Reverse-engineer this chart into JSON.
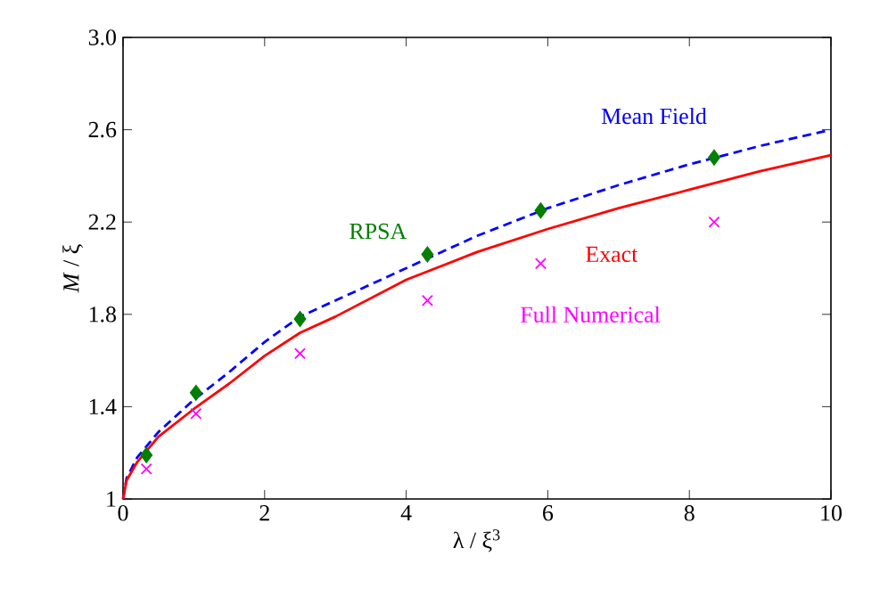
{
  "chart_data": {
    "type": "line",
    "xlabel": "λ / ξ$^{3}$",
    "ylabel": "*M* / ξ",
    "xlim": [
      0,
      10
    ],
    "ylim": [
      1,
      3
    ],
    "xticks": [
      0,
      2,
      4,
      6,
      8,
      10
    ],
    "yticks": [
      1,
      1.4,
      1.8,
      2.2,
      2.6,
      {
        "value": 3,
        "label": "3.0"
      }
    ],
    "grid": false,
    "legend": false,
    "series": [
      {
        "name": "Mean Field",
        "color": "#0000ff",
        "line_style": "dashed",
        "marker": "none",
        "x": [
          0,
          0.05,
          0.2,
          0.5,
          1,
          1.5,
          2,
          2.5,
          3,
          4,
          5,
          6,
          7,
          8,
          9,
          10
        ],
        "values": [
          1,
          1.09,
          1.18,
          1.29,
          1.43,
          1.55,
          1.68,
          1.79,
          1.86,
          2.0,
          2.14,
          2.26,
          2.36,
          2.45,
          2.53,
          2.6
        ]
      },
      {
        "name": "Exact",
        "color": "#ff0000",
        "line_style": "solid",
        "marker": "none",
        "x": [
          0,
          0.05,
          0.2,
          0.5,
          1,
          1.5,
          2,
          2.5,
          3,
          4,
          5,
          6,
          7,
          8,
          9,
          10
        ],
        "values": [
          1,
          1.08,
          1.16,
          1.27,
          1.39,
          1.5,
          1.62,
          1.72,
          1.79,
          1.95,
          2.07,
          2.17,
          2.26,
          2.34,
          2.42,
          2.49
        ]
      },
      {
        "name": "RPSA",
        "type": "scatter",
        "color": "#007f00",
        "marker": "diamond",
        "x": [
          0.33,
          1.03,
          2.5,
          4.3,
          5.9,
          8.35
        ],
        "values": [
          1.19,
          1.46,
          1.78,
          2.06,
          2.25,
          2.48
        ]
      },
      {
        "name": "Full Numerical",
        "type": "scatter",
        "color": "#ff00ff",
        "marker": "cross",
        "x": [
          0.33,
          1.03,
          2.5,
          4.3,
          5.9,
          8.35
        ],
        "values": [
          1.13,
          1.37,
          1.63,
          1.86,
          2.02,
          2.2
        ]
      }
    ]
  }
}
